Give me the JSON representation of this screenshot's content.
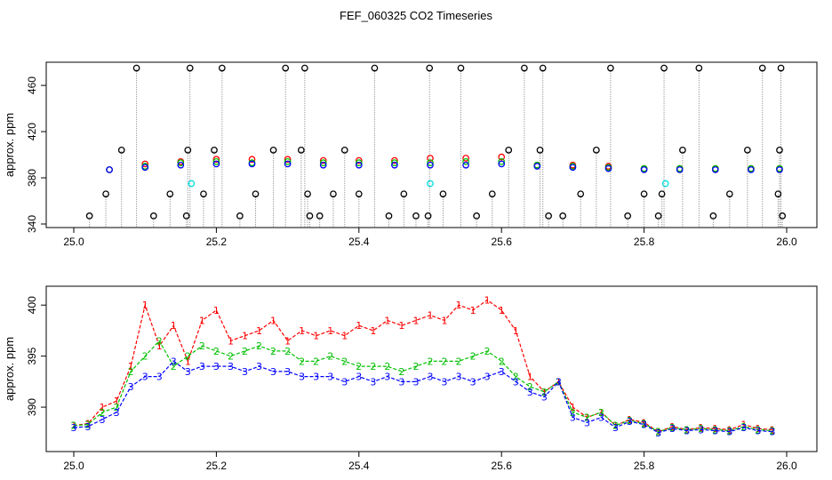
{
  "title": "FEF_060325  CO2 Timeseries",
  "colors": {
    "series1": "#ff0000",
    "series2": "#00c000",
    "series3": "#0000ff",
    "spikes": "#000000",
    "bad": "#00e0e0",
    "vertical_lines": "#999999"
  },
  "chart_data": [
    {
      "type": "scatter",
      "title": "",
      "xlabel": "",
      "ylabel": "approx. ppm",
      "xlim": [
        25.0,
        26.0
      ],
      "ylim": [
        340,
        477
      ],
      "x_ticks": [
        "25.0",
        "25.2",
        "25.4",
        "25.6",
        "25.8",
        "26.0"
      ],
      "y_ticks": [
        "340",
        "380",
        "420",
        "460"
      ],
      "grid": false,
      "series": [
        {
          "marker": "open-circle",
          "color": "#ff0000",
          "x": [
            25.05,
            25.1,
            25.15,
            25.2,
            25.25,
            25.3,
            25.35,
            25.4,
            25.45,
            25.5,
            25.55,
            25.6,
            25.65,
            25.7,
            25.75,
            25.8,
            25.85,
            25.9,
            25.95,
            25.99
          ],
          "y": [
            387,
            392,
            394,
            396,
            396,
            396,
            395,
            395,
            395,
            397,
            397,
            398,
            391,
            391,
            390,
            388,
            388,
            388,
            388,
            388
          ]
        },
        {
          "marker": "open-circle",
          "color": "#00c000",
          "x": [
            25.05,
            25.1,
            25.15,
            25.2,
            25.25,
            25.3,
            25.35,
            25.4,
            25.45,
            25.5,
            25.55,
            25.6,
            25.65,
            25.7,
            25.75,
            25.8,
            25.85,
            25.9,
            25.95,
            25.99
          ],
          "y": [
            387,
            390,
            393,
            394,
            393,
            394,
            393,
            393,
            393,
            393,
            394,
            394,
            391,
            390,
            389,
            388,
            388,
            388,
            388,
            388
          ]
        },
        {
          "marker": "open-circle",
          "color": "#0000ff",
          "x": [
            25.05,
            25.1,
            25.15,
            25.2,
            25.25,
            25.3,
            25.35,
            25.4,
            25.45,
            25.5,
            25.55,
            25.6,
            25.65,
            25.7,
            25.75,
            25.8,
            25.85,
            25.9,
            25.95,
            25.99
          ],
          "y": [
            387,
            389,
            391,
            392,
            392,
            392,
            391,
            391,
            391,
            391,
            391,
            392,
            390,
            389,
            388,
            387,
            387,
            387,
            387,
            387
          ]
        },
        {
          "marker": "open-circle",
          "color": "#000000",
          "x": [
            25.022,
            25.045,
            25.067,
            25.088,
            25.112,
            25.135,
            25.158,
            25.16,
            25.163,
            25.182,
            25.197,
            25.208,
            25.233,
            25.255,
            25.28,
            25.297,
            25.319,
            25.324,
            25.328,
            25.331,
            25.345,
            25.364,
            25.38,
            25.4,
            25.422,
            25.442,
            25.463,
            25.48,
            25.497,
            25.499,
            25.518,
            25.543,
            25.565,
            25.587,
            25.61,
            25.632,
            25.654,
            25.658,
            25.666,
            25.686,
            25.711,
            25.733,
            25.753,
            25.777,
            25.8,
            25.82,
            25.825,
            25.828,
            25.854,
            25.877,
            25.897,
            25.92,
            25.945,
            25.966,
            25.988,
            25.99,
            25.992,
            25.994
          ],
          "y": [
            347,
            366,
            404,
            475,
            347,
            366,
            347,
            404,
            475,
            366,
            404,
            475,
            347,
            366,
            404,
            475,
            404,
            475,
            366,
            347,
            347,
            366,
            404,
            366,
            475,
            347,
            366,
            347,
            347,
            475,
            366,
            475,
            347,
            366,
            404,
            475,
            404,
            475,
            347,
            347,
            366,
            404,
            475,
            347,
            366,
            347,
            366,
            475,
            404,
            475,
            347,
            366,
            404,
            475,
            366,
            404,
            475,
            347
          ]
        },
        {
          "marker": "open-circle",
          "color": "#00e0e0",
          "x": [
            25.165,
            25.5,
            25.83
          ],
          "y": [
            375,
            375,
            375
          ]
        }
      ]
    },
    {
      "type": "line",
      "title": "",
      "xlabel": "",
      "ylabel": "approx. ppm",
      "xlim": [
        25.0,
        26.0
      ],
      "ylim": [
        386,
        401.5
      ],
      "x_ticks": [
        "25.0",
        "25.2",
        "25.4",
        "25.6",
        "25.8",
        "26.0"
      ],
      "y_ticks": [
        "390",
        "395",
        "400"
      ],
      "grid": false,
      "series": [
        {
          "marker": "1",
          "color": "#ff0000",
          "x": [
            25.0,
            25.02,
            25.04,
            25.06,
            25.08,
            25.1,
            25.12,
            25.14,
            25.16,
            25.18,
            25.2,
            25.22,
            25.24,
            25.26,
            25.28,
            25.3,
            25.32,
            25.34,
            25.36,
            25.38,
            25.4,
            25.42,
            25.44,
            25.46,
            25.48,
            25.5,
            25.52,
            25.54,
            25.56,
            25.58,
            25.6,
            25.62,
            25.64,
            25.66,
            25.68,
            25.7,
            25.72,
            25.74,
            25.76,
            25.78,
            25.8,
            25.82,
            25.84,
            25.86,
            25.88,
            25.9,
            25.92,
            25.94,
            25.96,
            25.98
          ],
          "y": [
            388.2,
            388.4,
            390.0,
            390.6,
            394.0,
            400.0,
            396.0,
            398.0,
            394.5,
            398.5,
            399.5,
            396.5,
            397.0,
            397.5,
            398.5,
            396.5,
            397.5,
            397.0,
            397.5,
            397.0,
            398.0,
            397.5,
            398.5,
            398.0,
            398.5,
            399.0,
            398.5,
            400.0,
            399.5,
            400.5,
            399.5,
            397.5,
            393.0,
            391.5,
            392.5,
            390.0,
            389.0,
            389.5,
            388.2,
            388.8,
            388.5,
            387.6,
            388.1,
            387.8,
            388.0,
            387.9,
            387.8,
            388.3,
            387.9,
            387.8
          ]
        },
        {
          "marker": "2",
          "color": "#00c000",
          "x": [
            25.0,
            25.02,
            25.04,
            25.06,
            25.08,
            25.1,
            25.12,
            25.14,
            25.16,
            25.18,
            25.2,
            25.22,
            25.24,
            25.26,
            25.28,
            25.3,
            25.32,
            25.34,
            25.36,
            25.38,
            25.4,
            25.42,
            25.44,
            25.46,
            25.48,
            25.5,
            25.52,
            25.54,
            25.56,
            25.58,
            25.6,
            25.62,
            25.64,
            25.66,
            25.68,
            25.7,
            25.72,
            25.74,
            25.76,
            25.78,
            25.8,
            25.82,
            25.84,
            25.86,
            25.88,
            25.9,
            25.92,
            25.94,
            25.96,
            25.98
          ],
          "y": [
            388.2,
            388.3,
            389.5,
            390.0,
            393.5,
            395.0,
            396.5,
            394.0,
            395.0,
            396.0,
            395.5,
            395.0,
            395.5,
            396.0,
            395.5,
            395.5,
            394.5,
            394.5,
            395.0,
            394.5,
            394.0,
            394.0,
            394.0,
            393.5,
            394.0,
            394.5,
            394.5,
            394.5,
            395.0,
            395.5,
            394.5,
            393.0,
            392.0,
            391.5,
            392.5,
            389.5,
            389.0,
            389.5,
            388.2,
            388.7,
            388.4,
            387.6,
            388.0,
            387.8,
            387.9,
            387.8,
            387.7,
            388.1,
            387.8,
            387.7
          ]
        },
        {
          "marker": "3",
          "color": "#0000ff",
          "x": [
            25.0,
            25.02,
            25.04,
            25.06,
            25.08,
            25.1,
            25.12,
            25.14,
            25.16,
            25.18,
            25.2,
            25.22,
            25.24,
            25.26,
            25.28,
            25.3,
            25.32,
            25.34,
            25.36,
            25.38,
            25.4,
            25.42,
            25.44,
            25.46,
            25.48,
            25.5,
            25.52,
            25.54,
            25.56,
            25.58,
            25.6,
            25.62,
            25.64,
            25.66,
            25.68,
            25.7,
            25.72,
            25.74,
            25.76,
            25.78,
            25.8,
            25.82,
            25.84,
            25.86,
            25.88,
            25.9,
            25.92,
            25.94,
            25.96,
            25.98
          ],
          "y": [
            388.0,
            388.1,
            388.8,
            389.5,
            392.0,
            393.0,
            393.0,
            394.5,
            393.5,
            394.0,
            394.0,
            394.0,
            393.5,
            394.0,
            393.5,
            393.5,
            393.0,
            393.0,
            393.0,
            392.5,
            393.0,
            392.5,
            393.0,
            392.5,
            392.5,
            393.0,
            392.5,
            393.0,
            392.5,
            393.0,
            393.5,
            392.5,
            391.5,
            391.0,
            392.5,
            389.0,
            388.5,
            389.0,
            388.0,
            388.6,
            388.3,
            387.5,
            387.9,
            387.7,
            387.8,
            387.7,
            387.6,
            388.0,
            387.7,
            387.6
          ]
        }
      ]
    }
  ]
}
